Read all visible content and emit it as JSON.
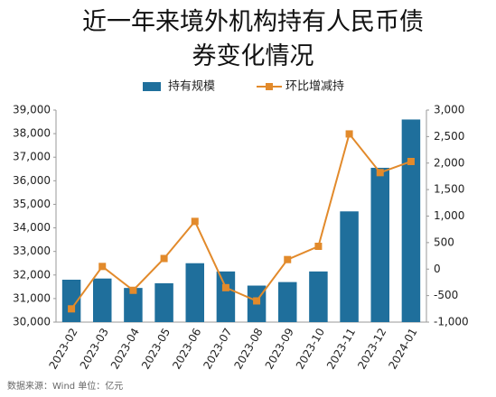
{
  "chart_data": {
    "type": "bar-line",
    "title": "近一年来境外机构持有人民币债券变化情况",
    "source": "数据来源：Wind   单位：亿元",
    "categories": [
      "2023-02",
      "2023-03",
      "2023-04",
      "2023-05",
      "2023-06",
      "2023-07",
      "2023-08",
      "2023-09",
      "2023-10",
      "2023-11",
      "2023-12",
      "2024-01"
    ],
    "series": [
      {
        "name": "持有规模",
        "type": "bar",
        "color": "#1f6f9c",
        "values": [
          31800,
          31850,
          31450,
          31650,
          32500,
          32150,
          31550,
          31700,
          32150,
          34700,
          36550,
          38600
        ]
      },
      {
        "name": "环比增减持",
        "type": "line",
        "axis": "y2",
        "color": "#e28a2b",
        "values": [
          -750,
          50,
          -400,
          200,
          900,
          -350,
          -600,
          180,
          430,
          2550,
          1820,
          2030
        ]
      }
    ],
    "ylim": [
      30000,
      39000
    ],
    "yticks": [
      {
        "value": 30000,
        "label": "30,000"
      },
      {
        "value": 31000,
        "label": "31,000"
      },
      {
        "value": 32000,
        "label": "32,000"
      },
      {
        "value": 33000,
        "label": "33,000"
      },
      {
        "value": 34000,
        "label": "34,000"
      },
      {
        "value": 35000,
        "label": "35,000"
      },
      {
        "value": 36000,
        "label": "36,000"
      },
      {
        "value": 37000,
        "label": "37,000"
      },
      {
        "value": 38000,
        "label": "38,000"
      },
      {
        "value": 39000,
        "label": "39,000"
      }
    ],
    "y2lim": [
      -1000,
      3000
    ],
    "y2ticks": [
      {
        "value": -1000,
        "label": "-1,000"
      },
      -500,
      0,
      500,
      {
        "value": 1000,
        "label": "1,000"
      },
      {
        "value": 1500,
        "label": "1,500"
      },
      {
        "value": 2000,
        "label": "2,000"
      },
      {
        "value": 2500,
        "label": "2,500"
      },
      {
        "value": 3000,
        "label": "3,000"
      }
    ]
  }
}
